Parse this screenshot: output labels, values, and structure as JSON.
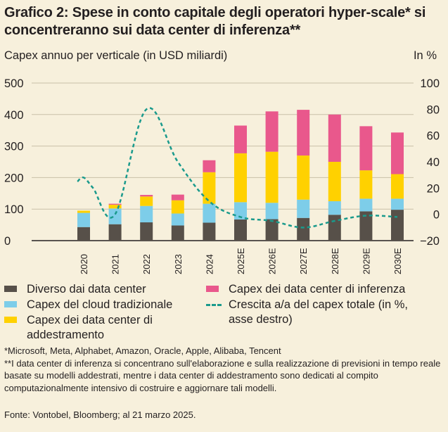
{
  "title": "Grafico 2: Spese in conto capitale degli operatori hyper-scale* si concentreranno sui data center di inferenza**",
  "left_axis_label": "Capex annuo per verticale (in USD miliardi)",
  "right_axis_label": "In %",
  "left_ticks": [
    "500",
    "400",
    "300",
    "200",
    "100",
    "0"
  ],
  "right_ticks": [
    "100",
    "80",
    "60",
    "40",
    "20",
    "0",
    "-20"
  ],
  "legend": {
    "other": "Diverso dai data center",
    "cloud": "Capex del cloud tradizionale",
    "training": "Capex dei data center di addestramento",
    "inference": "Capex dei data center di inferenza",
    "growth": "Crescita a/a del capex totale (in %, asse destro)"
  },
  "colors": {
    "other": "#575049",
    "cloud": "#7dcde9",
    "training": "#ffd100",
    "inference": "#e9588c",
    "growth": "#1a9a8c",
    "background": "#f7f0dc"
  },
  "notes": {
    "footnote1": "*Microsoft, Meta, Alphabet, Amazon, Oracle, Apple, Alibaba, Tencent",
    "footnote2": "**I data center di inferenza si concentrano sull'elaborazione e sulla realizzazione di previsioni in tempo reale basate su modelli addestrati, mentre i data center di addestramento sono dedicati al compito computazionalmente intensivo di costruire e aggiornare tali modelli.",
    "source": "Fonte: Vontobel, Bloomberg; al 21 marzo 2025."
  },
  "chart_data": {
    "type": "bar",
    "stacked": true,
    "categories": [
      "2020",
      "2021",
      "2022",
      "2023",
      "2024",
      "2025E",
      "2026E",
      "2027E",
      "2028E",
      "2029E",
      "2030E"
    ],
    "series": [
      {
        "name": "Diverso dai data center",
        "values": [
          43,
          52,
          58,
          48,
          57,
          67,
          68,
          72,
          82,
          93,
          98
        ]
      },
      {
        "name": "Capex del cloud tradizionale",
        "values": [
          45,
          50,
          52,
          38,
          60,
          55,
          52,
          58,
          43,
          40,
          35
        ]
      },
      {
        "name": "Capex dei data center di addestramento",
        "values": [
          7,
          12,
          30,
          42,
          100,
          155,
          162,
          140,
          125,
          90,
          78
        ]
      },
      {
        "name": "Capex dei data center di inferenza",
        "values": [
          0,
          3,
          5,
          18,
          38,
          88,
          128,
          145,
          150,
          140,
          132
        ]
      }
    ],
    "line_series": {
      "name": "Crescita a/a del capex totale (in %, asse destro)",
      "axis": "right",
      "points": [
        {
          "x": 2019.8,
          "y": 25
        },
        {
          "x": 2020,
          "y": 28
        },
        {
          "x": 2020.3,
          "y": 20
        },
        {
          "x": 2021,
          "y": 0
        },
        {
          "x": 2022,
          "y": 80
        },
        {
          "x": 2023,
          "y": 40
        },
        {
          "x": 2024,
          "y": 10
        },
        {
          "x": 2025,
          "y": -2
        },
        {
          "x": 2026,
          "y": -5
        },
        {
          "x": 2027,
          "y": -10
        },
        {
          "x": 2028,
          "y": -5
        },
        {
          "x": 2029,
          "y": -1
        },
        {
          "x": 2030,
          "y": -2
        }
      ]
    },
    "ylim": [
      0,
      500
    ],
    "y2lim": [
      -20,
      100
    ]
  }
}
